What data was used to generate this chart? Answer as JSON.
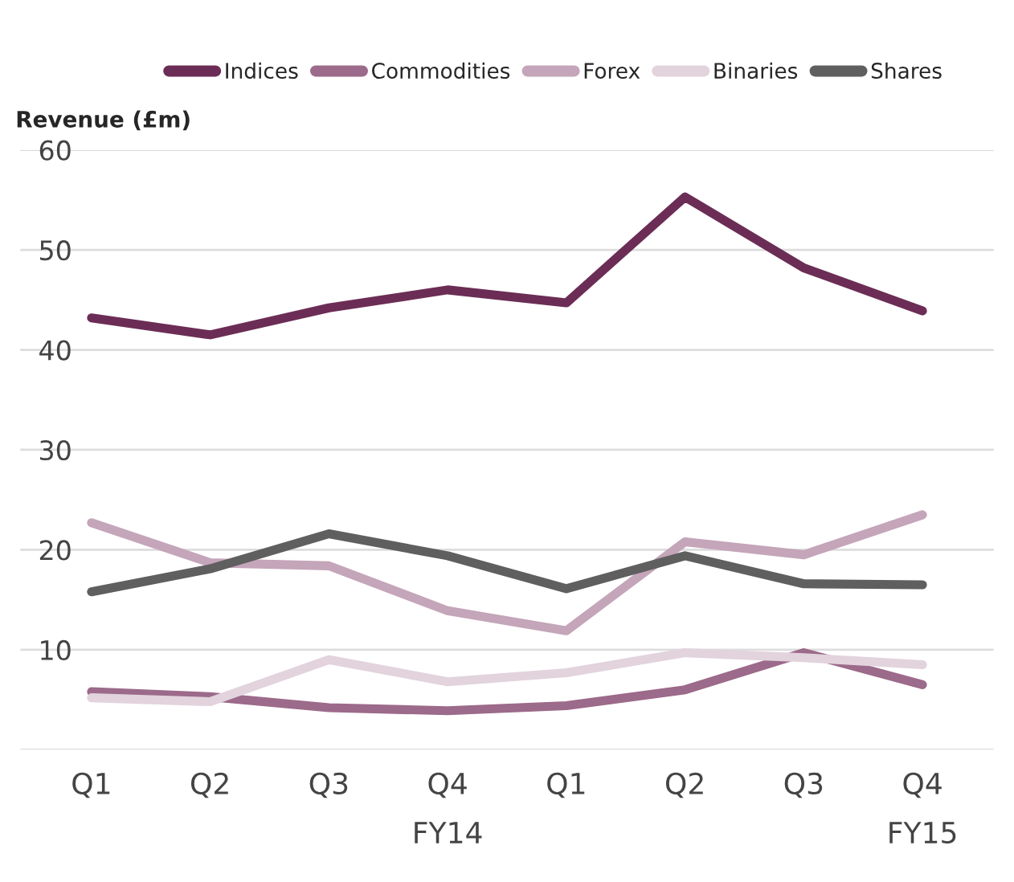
{
  "chart_data": {
    "type": "line",
    "ylabel": "Revenue (£m)",
    "categories": [
      "Q1",
      "Q2",
      "Q3",
      "Q4",
      "Q1",
      "Q2",
      "Q3",
      "Q4"
    ],
    "series": [
      {
        "name": "Indices",
        "color": "#6b2d55",
        "values": [
          43.2,
          41.5,
          44.2,
          46,
          44.7,
          55.3,
          48.2,
          43.9
        ]
      },
      {
        "name": "Commodities",
        "color": "#9c6a8a",
        "values": [
          5.8,
          5.3,
          4.2,
          3.9,
          4.4,
          6.0,
          9.7,
          6.5
        ]
      },
      {
        "name": "Forex",
        "color": "#c4a5b9",
        "values": [
          22.7,
          18.7,
          18.4,
          13.9,
          11.9,
          20.8,
          19.5,
          23.5
        ]
      },
      {
        "name": "Binaries",
        "color": "#e2d3dd",
        "values": [
          5.2,
          4.8,
          9.0,
          6.8,
          7.7,
          9.7,
          9.2,
          8.5
        ]
      },
      {
        "name": "Shares",
        "color": "#5f5f5f",
        "values": [
          15.8,
          18.1,
          21.6,
          19.4,
          16.1,
          19.4,
          16.6,
          16.5
        ]
      }
    ],
    "ylim": [
      0,
      60
    ],
    "yticks": [
      {
        "value": 0,
        "label": null
      },
      10,
      20,
      30,
      40,
      50,
      60
    ],
    "grid": "y",
    "legend": "top",
    "marker": "none",
    "line_style": "solid",
    "annotations": [
      "FY14",
      "FY15"
    ]
  }
}
